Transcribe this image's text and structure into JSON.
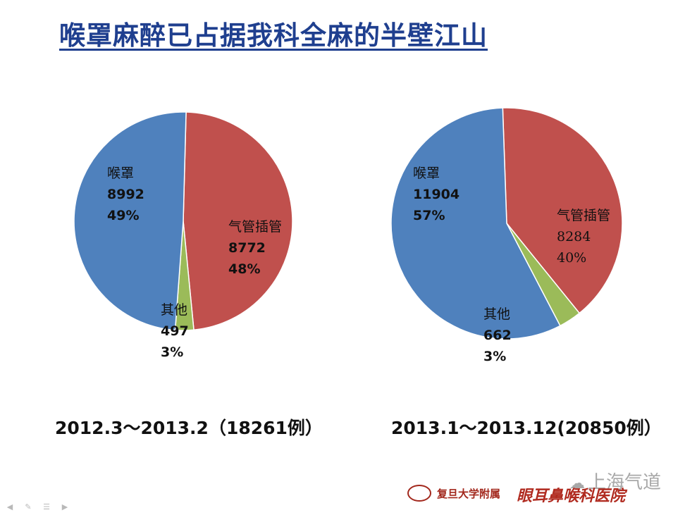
{
  "slide": {
    "title": "喉罩麻醉已占据我科全麻的半壁江山"
  },
  "chart_data": [
    {
      "type": "pie",
      "caption": "2012.3～2013.2（18261例）",
      "total": 18261,
      "slices": [
        {
          "name": "喉罩",
          "value": 8992,
          "percent": "49%",
          "color": "#4f81bd"
        },
        {
          "name": "气管插管",
          "value": 8772,
          "percent": "48%",
          "color": "#c0504d"
        },
        {
          "name": "其他",
          "value": 497,
          "percent": "3%",
          "color": "#9bbb59"
        }
      ]
    },
    {
      "type": "pie",
      "caption": "2013.1～2013.12(20850例）",
      "total": 20850,
      "slices": [
        {
          "name": "喉罩",
          "value": 11904,
          "percent": "57%",
          "color": "#4f81bd"
        },
        {
          "name": "气管插管",
          "value": 8284,
          "percent": "40%",
          "color": "#c0504d"
        },
        {
          "name": "其他",
          "value": 662,
          "percent": "3%",
          "color": "#9bbb59"
        }
      ]
    }
  ],
  "footer": {
    "hospital_prefix": "复旦大学附属",
    "hospital_name": "眼耳鼻喉科医院",
    "watermark": "上海气道",
    "watermark_icon": "wechat-icon"
  },
  "toolbar": {
    "icons": [
      "arrow-left-icon",
      "pen-icon",
      "menu-icon",
      "arrow-right-icon"
    ]
  }
}
